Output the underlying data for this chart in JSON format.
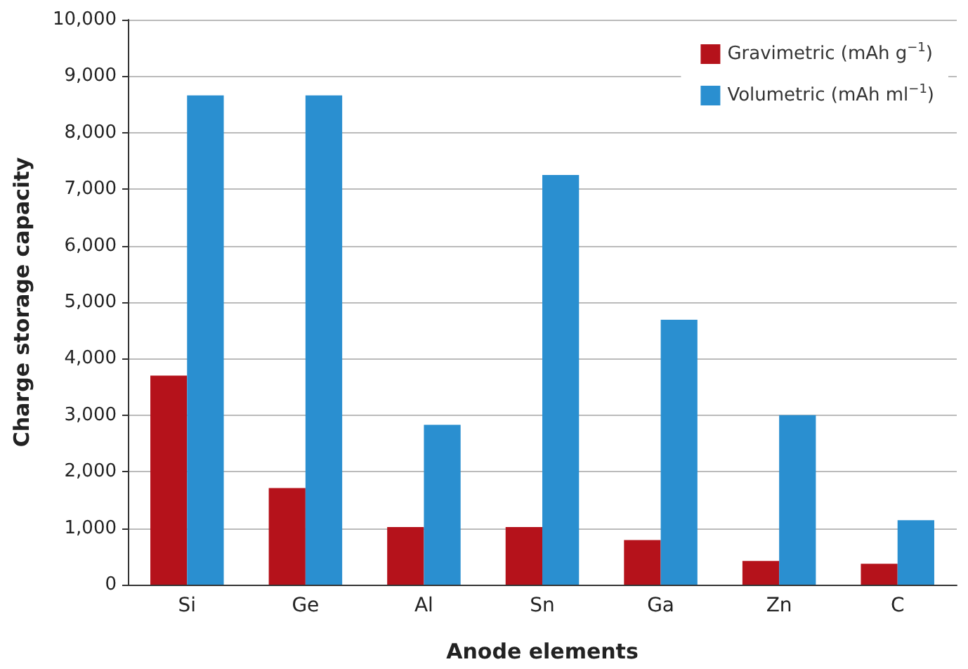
{
  "chart_data": {
    "type": "bar",
    "xlabel": "Anode elements",
    "ylabel": "Charge storage capacity",
    "categories": [
      "Si",
      "Ge",
      "Al",
      "Sn",
      "Ga",
      "Zn",
      "C"
    ],
    "series": [
      {
        "name": "Gravimetric (mAh g$^{−1}$)",
        "color": "#b5121b",
        "values": [
          3700,
          1710,
          1020,
          1020,
          790,
          420,
          370
        ]
      },
      {
        "name": "Volumetric (mAh ml$^{−1}$)",
        "color": "#2a8fd0",
        "values": [
          8660,
          8660,
          2830,
          7250,
          4690,
          3000,
          1140
        ]
      }
    ],
    "ylim": [
      0,
      10000
    ],
    "yticks": [
      {
        "value": 0,
        "label": "0"
      },
      {
        "value": 1000,
        "label": "1,000"
      },
      {
        "value": 2000,
        "label": "2,000"
      },
      {
        "value": 3000,
        "label": "3,000"
      },
      {
        "value": 4000,
        "label": "4,000"
      },
      {
        "value": 5000,
        "label": "5,000"
      },
      {
        "value": 6000,
        "label": "6,000"
      },
      {
        "value": 7000,
        "label": "7,000"
      },
      {
        "value": 8000,
        "label": "8,000"
      },
      {
        "value": 9000,
        "label": "9,000"
      },
      {
        "value": 10000,
        "label": "10,000"
      }
    ],
    "grid": "y",
    "legend": "top right"
  }
}
